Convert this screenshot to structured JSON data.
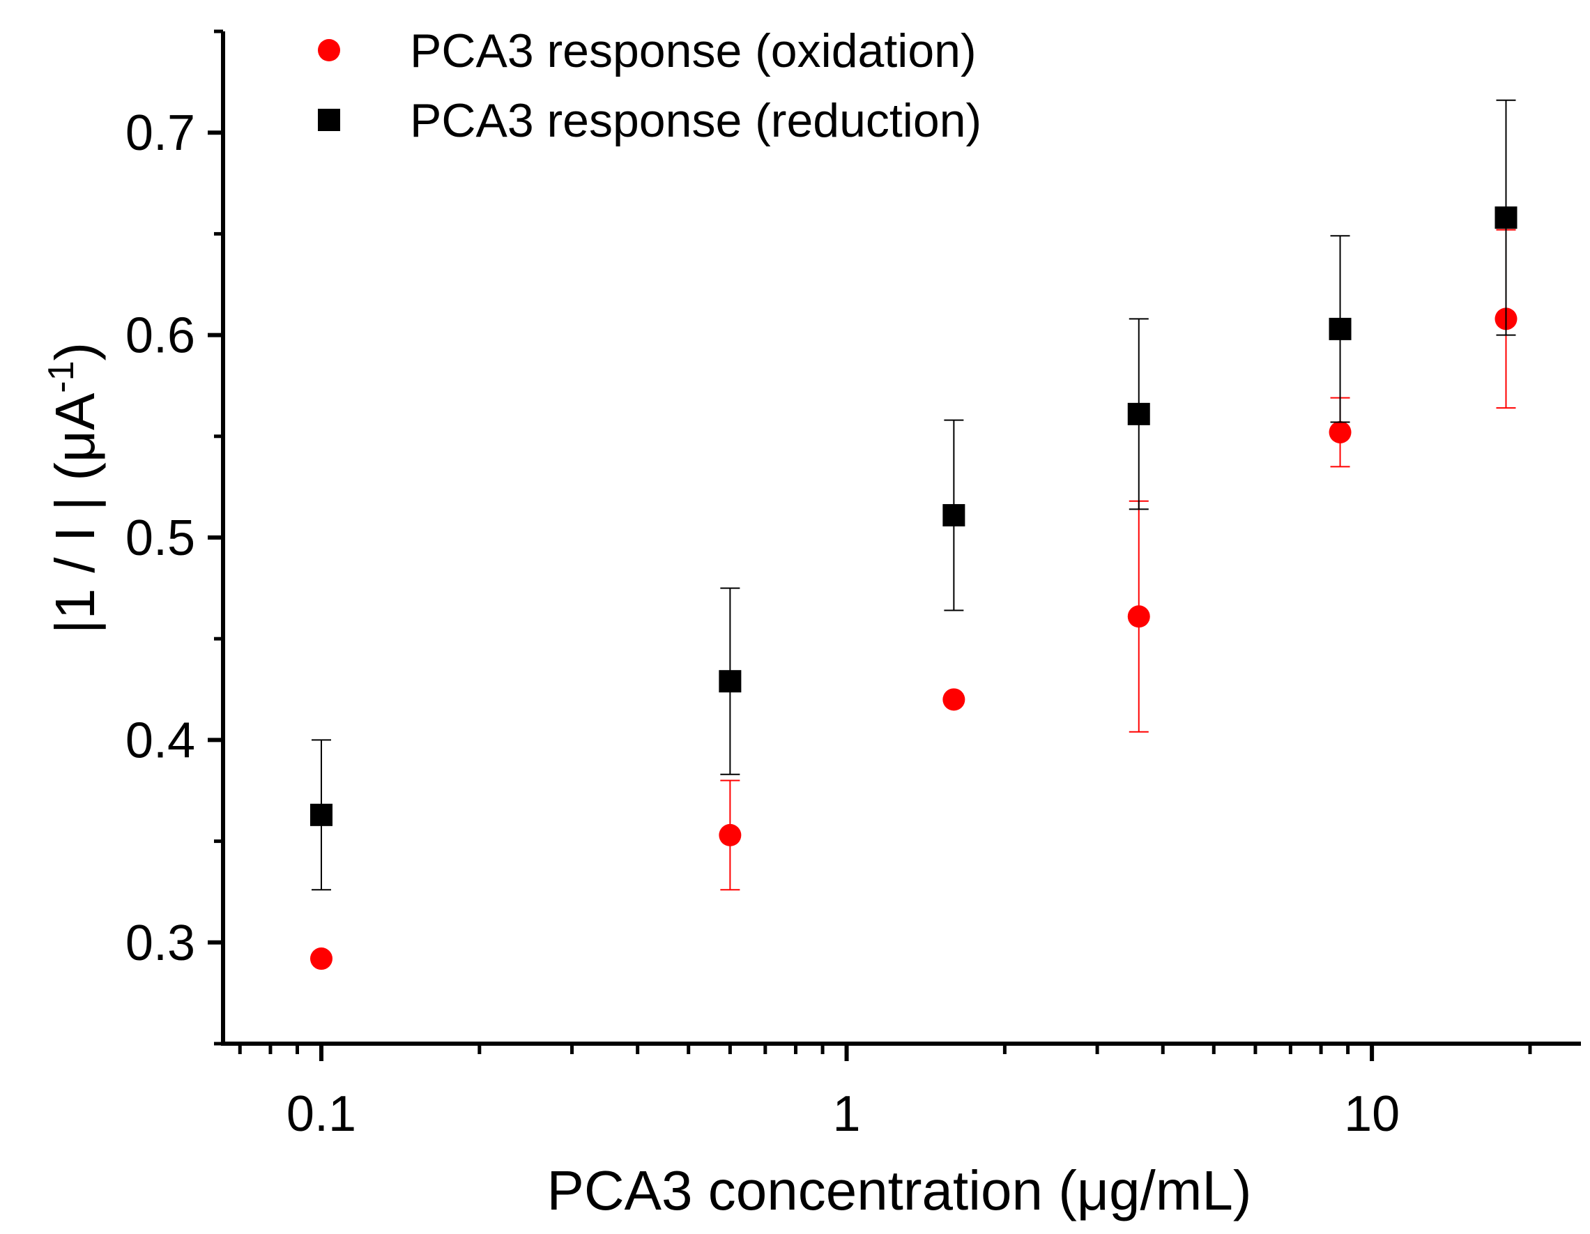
{
  "chart_data": {
    "type": "scatter",
    "title": "",
    "xlabel": "PCA3 concentration (μg/mL)",
    "ylabel_parts": {
      "main": "|1 / I | (μA",
      "sup": "-1",
      "end": ")"
    },
    "x_scale": "log",
    "xlim": [
      0.065,
      25
    ],
    "ylim": [
      0.25,
      0.75
    ],
    "x_ticks": [
      {
        "value": 0.1,
        "label": "0.1"
      },
      {
        "value": 1,
        "label": "1"
      },
      {
        "value": 10,
        "label": "10"
      }
    ],
    "y_ticks": [
      {
        "value": 0.3,
        "label": "0.3"
      },
      {
        "value": 0.4,
        "label": "0.4"
      },
      {
        "value": 0.5,
        "label": "0.5"
      },
      {
        "value": 0.6,
        "label": "0.6"
      },
      {
        "value": 0.7,
        "label": "0.7"
      }
    ],
    "legend_position": "top-left",
    "series": [
      {
        "name": "PCA3 response (oxidation)",
        "marker": "circle",
        "color": "#ff0000",
        "points": [
          {
            "x": 0.1,
            "y": 0.292,
            "err": null
          },
          {
            "x": 0.6,
            "y": 0.353,
            "err": 0.027
          },
          {
            "x": 1.6,
            "y": 0.42,
            "err": null
          },
          {
            "x": 3.6,
            "y": 0.461,
            "err": 0.057
          },
          {
            "x": 8.7,
            "y": 0.552,
            "err": 0.017
          },
          {
            "x": 18,
            "y": 0.608,
            "err": 0.044
          }
        ]
      },
      {
        "name": "PCA3 response (reduction)",
        "marker": "square",
        "color": "#000000",
        "points": [
          {
            "x": 0.1,
            "y": 0.363,
            "err": 0.037
          },
          {
            "x": 0.6,
            "y": 0.429,
            "err": 0.046
          },
          {
            "x": 1.6,
            "y": 0.511,
            "err": 0.047
          },
          {
            "x": 3.6,
            "y": 0.561,
            "err": 0.047
          },
          {
            "x": 8.7,
            "y": 0.603,
            "err": 0.046
          },
          {
            "x": 18,
            "y": 0.658,
            "err": 0.058
          }
        ]
      }
    ]
  }
}
